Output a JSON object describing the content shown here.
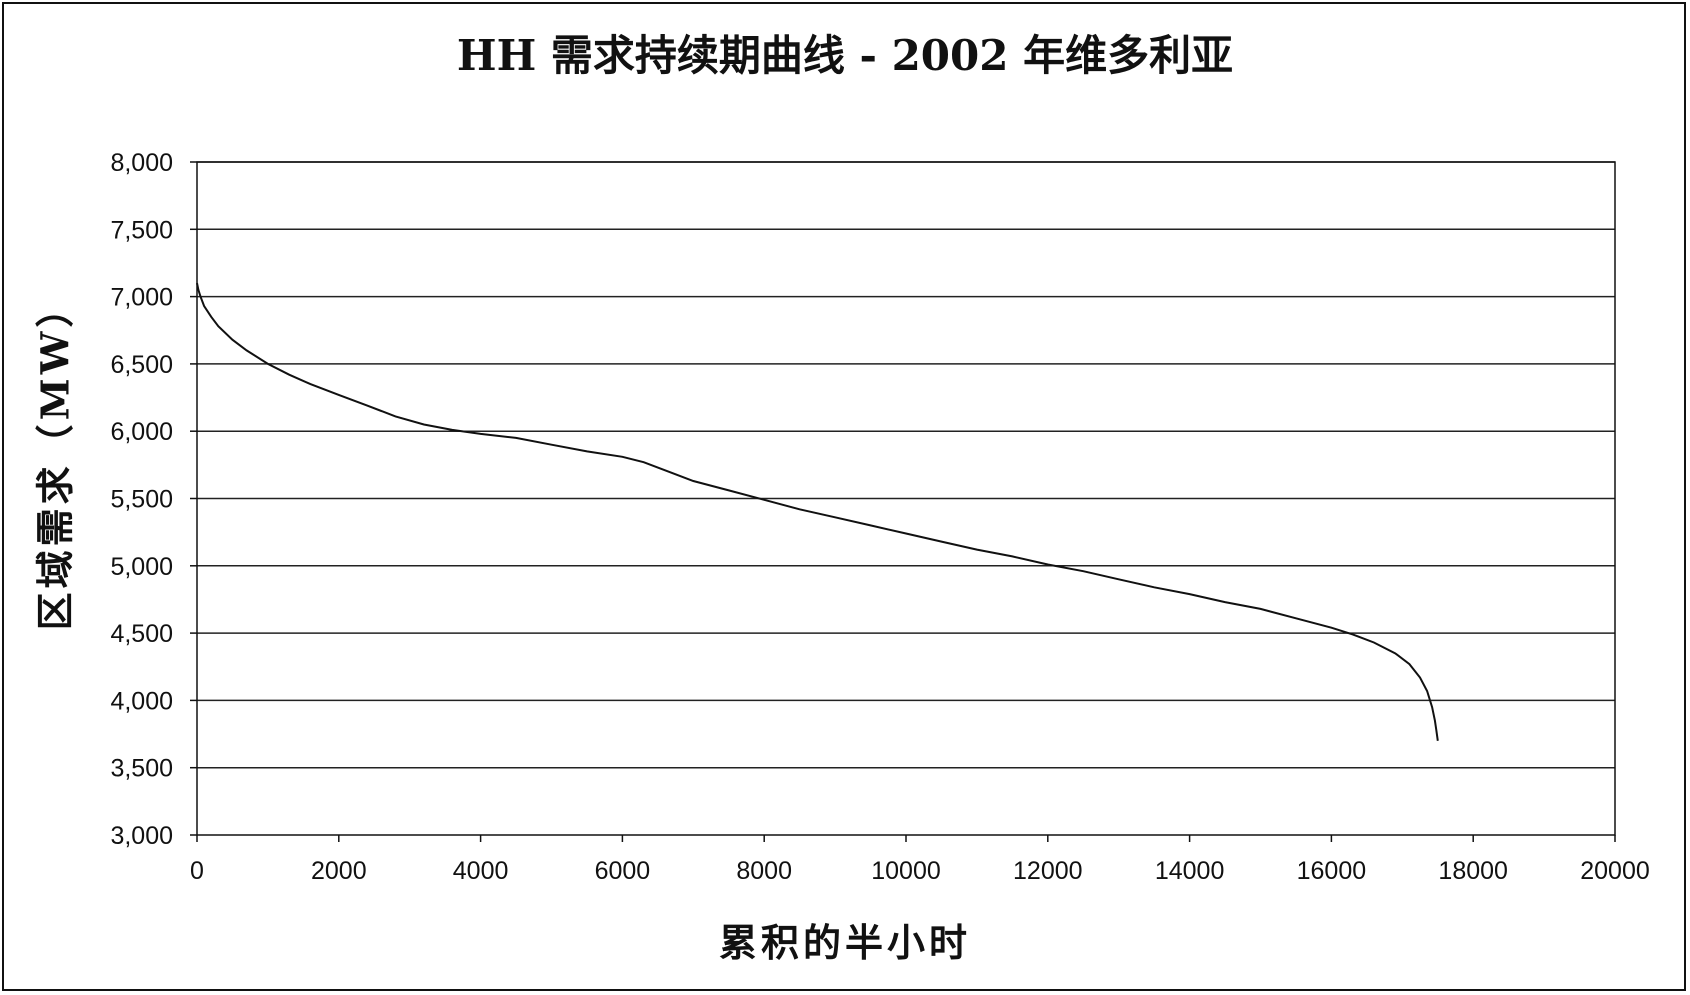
{
  "chart_data": {
    "type": "line",
    "title": "HH 需求持续期曲线 - 2002 年维多利亚",
    "xlabel": "累积的半小时",
    "ylabel": "区域需求（MW）",
    "xlim": [
      0,
      20000
    ],
    "ylim": [
      3000,
      8000
    ],
    "x_ticks": [
      0,
      2000,
      4000,
      6000,
      8000,
      10000,
      12000,
      14000,
      16000,
      18000,
      20000
    ],
    "x_tick_labels": [
      "0",
      "2000",
      "4000",
      "6000",
      "8000",
      "10000",
      "12000",
      "14000",
      "16000",
      "18000",
      "20000"
    ],
    "y_ticks": [
      3000,
      3500,
      4000,
      4500,
      5000,
      5500,
      6000,
      6500,
      7000,
      7500,
      8000
    ],
    "y_tick_labels": [
      "3,000",
      "3,500",
      "4,000",
      "4,500",
      "5,000",
      "5,500",
      "6,000",
      "6,500",
      "7,000",
      "7,500",
      "8,000"
    ],
    "grid": "horizontal",
    "legend": "none",
    "line_color": "#111111",
    "series": [
      {
        "x": [
          0,
          20,
          50,
          100,
          200,
          300,
          500,
          700,
          1000,
          1300,
          1600,
          2000,
          2400,
          2800,
          3200,
          3600,
          4000,
          4500,
          5000,
          5500,
          6000,
          6300,
          6700,
          7000,
          7500,
          8000,
          8500,
          9000,
          9500,
          10000,
          10500,
          11000,
          11500,
          12000,
          12500,
          13000,
          13500,
          14000,
          14500,
          15000,
          15500,
          16000,
          16300,
          16600,
          16900,
          17100,
          17250,
          17350,
          17420,
          17460,
          17480,
          17500
        ],
        "y": [
          7100,
          7050,
          7000,
          6930,
          6850,
          6780,
          6680,
          6600,
          6500,
          6420,
          6350,
          6270,
          6190,
          6110,
          6050,
          6010,
          5980,
          5950,
          5900,
          5850,
          5810,
          5770,
          5690,
          5630,
          5560,
          5490,
          5420,
          5360,
          5300,
          5240,
          5180,
          5120,
          5070,
          5010,
          4960,
          4900,
          4840,
          4790,
          4730,
          4680,
          4610,
          4540,
          4490,
          4430,
          4350,
          4270,
          4170,
          4070,
          3950,
          3850,
          3780,
          3700
        ]
      }
    ]
  }
}
